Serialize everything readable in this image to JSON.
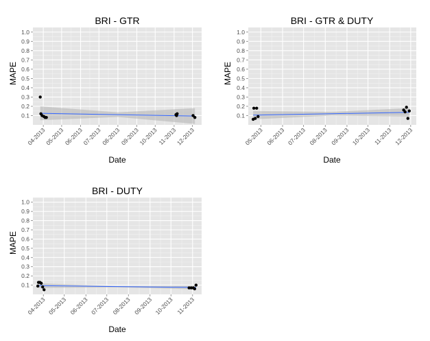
{
  "colors": {
    "panel_background": "#e5e5e5",
    "grid_major": "#ffffff",
    "grid_minor": "#f2f2f2",
    "fit_line": "#3366ff",
    "confidence_band": "#b3b3b3",
    "point": "#000000",
    "text": "#000000",
    "tick_text": "#4d4d4d"
  },
  "chart_data": [
    {
      "type": "scatter",
      "title": "BRI -   GTR",
      "xlabel": "Date",
      "ylabel": "MAPE",
      "xlim": [
        "2013-03-15",
        "2013-12-16"
      ],
      "ylim": [
        0,
        1.05
      ],
      "grid": true,
      "x_ticks": [
        "2013-04-01",
        "2013-05-01",
        "2013-06-01",
        "2013-07-01",
        "2013-08-01",
        "2013-09-01",
        "2013-10-01",
        "2013-11-01",
        "2013-12-01"
      ],
      "x_tick_labels": [
        "04-2013",
        "05-2013",
        "06-2013",
        "07-2013",
        "08-2013",
        "09-2013",
        "10-2013",
        "11-2013",
        "12-2013"
      ],
      "y_ticks": [
        0.1,
        0.2,
        0.3,
        0.4,
        0.5,
        0.6,
        0.7,
        0.8,
        0.9,
        1.0
      ],
      "y_tick_labels": [
        "0.1",
        "0.2",
        "0.3",
        "0.4",
        "0.5",
        "0.6",
        "0.7",
        "0.8",
        "0.9",
        "1.0"
      ],
      "points": [
        {
          "x": "2013-03-27",
          "y": 0.3
        },
        {
          "x": "2013-03-28",
          "y": 0.12
        },
        {
          "x": "2013-03-30",
          "y": 0.1
        },
        {
          "x": "2013-04-02",
          "y": 0.09
        },
        {
          "x": "2013-04-04",
          "y": 0.08
        },
        {
          "x": "2013-04-06",
          "y": 0.08
        },
        {
          "x": "2013-11-04",
          "y": 0.11
        },
        {
          "x": "2013-11-05",
          "y": 0.1
        },
        {
          "x": "2013-11-06",
          "y": 0.12
        },
        {
          "x": "2013-12-02",
          "y": 0.1
        },
        {
          "x": "2013-12-05",
          "y": 0.08
        }
      ],
      "fit_line": [
        {
          "x": "2013-03-27",
          "y": 0.125
        },
        {
          "x": "2013-12-05",
          "y": 0.095
        }
      ],
      "band": {
        "upper": [
          {
            "x": "2013-03-27",
            "y": 0.2
          },
          {
            "x": "2013-08-01",
            "y": 0.135
          },
          {
            "x": "2013-12-05",
            "y": 0.18
          }
        ],
        "lower": [
          {
            "x": "2013-03-27",
            "y": 0.05
          },
          {
            "x": "2013-08-01",
            "y": 0.085
          },
          {
            "x": "2013-12-05",
            "y": 0.01
          }
        ]
      }
    },
    {
      "type": "scatter",
      "title": "BRI -   GTR & DUTY",
      "xlabel": "Date",
      "ylabel": "MAPE",
      "xlim": [
        "2013-04-13",
        "2013-12-09"
      ],
      "ylim": [
        0,
        1.05
      ],
      "grid": true,
      "x_ticks": [
        "2013-05-01",
        "2013-06-01",
        "2013-07-01",
        "2013-08-01",
        "2013-09-01",
        "2013-10-01",
        "2013-11-01",
        "2013-12-01"
      ],
      "x_tick_labels": [
        "05-2013",
        "06-2013",
        "07-2013",
        "08-2013",
        "09-2013",
        "10-2013",
        "11-2013",
        "12-2013"
      ],
      "y_ticks": [
        0.1,
        0.2,
        0.3,
        0.4,
        0.5,
        0.6,
        0.7,
        0.8,
        0.9,
        1.0
      ],
      "y_tick_labels": [
        "0.1",
        "0.2",
        "0.3",
        "0.4",
        "0.5",
        "0.6",
        "0.7",
        "0.8",
        "0.9",
        "1.0"
      ],
      "points": [
        {
          "x": "2013-04-20",
          "y": 0.06
        },
        {
          "x": "2013-04-21",
          "y": 0.18
        },
        {
          "x": "2013-04-23",
          "y": 0.07
        },
        {
          "x": "2013-04-25",
          "y": 0.18
        },
        {
          "x": "2013-04-27",
          "y": 0.09
        },
        {
          "x": "2013-11-21",
          "y": 0.16
        },
        {
          "x": "2013-11-23",
          "y": 0.14
        },
        {
          "x": "2013-11-25",
          "y": 0.19
        },
        {
          "x": "2013-11-27",
          "y": 0.07
        },
        {
          "x": "2013-11-29",
          "y": 0.15
        }
      ],
      "fit_line": [
        {
          "x": "2013-04-20",
          "y": 0.105
        },
        {
          "x": "2013-11-29",
          "y": 0.135
        }
      ],
      "band": {
        "upper": [
          {
            "x": "2013-04-20",
            "y": 0.15
          },
          {
            "x": "2013-08-10",
            "y": 0.14
          },
          {
            "x": "2013-11-29",
            "y": 0.18
          }
        ],
        "lower": [
          {
            "x": "2013-04-20",
            "y": 0.06
          },
          {
            "x": "2013-08-10",
            "y": 0.1
          },
          {
            "x": "2013-11-29",
            "y": 0.09
          }
        ]
      }
    },
    {
      "type": "scatter",
      "title": "BRI -   DUTY",
      "xlabel": "Date",
      "ylabel": "MAPE",
      "xlim": [
        "2013-03-17",
        "2013-11-14"
      ],
      "ylim": [
        0,
        1.05
      ],
      "grid": true,
      "x_ticks": [
        "2013-04-01",
        "2013-05-01",
        "2013-06-01",
        "2013-07-01",
        "2013-08-01",
        "2013-09-01",
        "2013-10-01",
        "2013-11-01"
      ],
      "x_tick_labels": [
        "04-2013",
        "05-2013",
        "06-2013",
        "07-2013",
        "08-2013",
        "09-2013",
        "10-2013",
        "11-2013"
      ],
      "y_ticks": [
        0.1,
        0.2,
        0.3,
        0.4,
        0.5,
        0.6,
        0.7,
        0.8,
        0.9,
        1.0
      ],
      "y_tick_labels": [
        "0.1",
        "0.2",
        "0.3",
        "0.4",
        "0.5",
        "0.6",
        "0.7",
        "0.8",
        "0.9",
        "1.0"
      ],
      "points": [
        {
          "x": "2013-03-24",
          "y": 0.09
        },
        {
          "x": "2013-03-25",
          "y": 0.13
        },
        {
          "x": "2013-03-27",
          "y": 0.13
        },
        {
          "x": "2013-03-29",
          "y": 0.12
        },
        {
          "x": "2013-03-31",
          "y": 0.08
        },
        {
          "x": "2013-04-02",
          "y": 0.05
        },
        {
          "x": "2013-10-27",
          "y": 0.07
        },
        {
          "x": "2013-10-30",
          "y": 0.07
        },
        {
          "x": "2013-11-02",
          "y": 0.07
        },
        {
          "x": "2013-11-04",
          "y": 0.06
        },
        {
          "x": "2013-11-06",
          "y": 0.1
        }
      ],
      "fit_line": [
        {
          "x": "2013-03-24",
          "y": 0.095
        },
        {
          "x": "2013-11-06",
          "y": 0.075
        }
      ],
      "band": {
        "upper": [
          {
            "x": "2013-03-24",
            "y": 0.12
          },
          {
            "x": "2013-07-15",
            "y": 0.09
          },
          {
            "x": "2013-11-06",
            "y": 0.095
          }
        ],
        "lower": [
          {
            "x": "2013-03-24",
            "y": 0.07
          },
          {
            "x": "2013-07-15",
            "y": 0.075
          },
          {
            "x": "2013-11-06",
            "y": 0.055
          }
        ]
      }
    }
  ]
}
